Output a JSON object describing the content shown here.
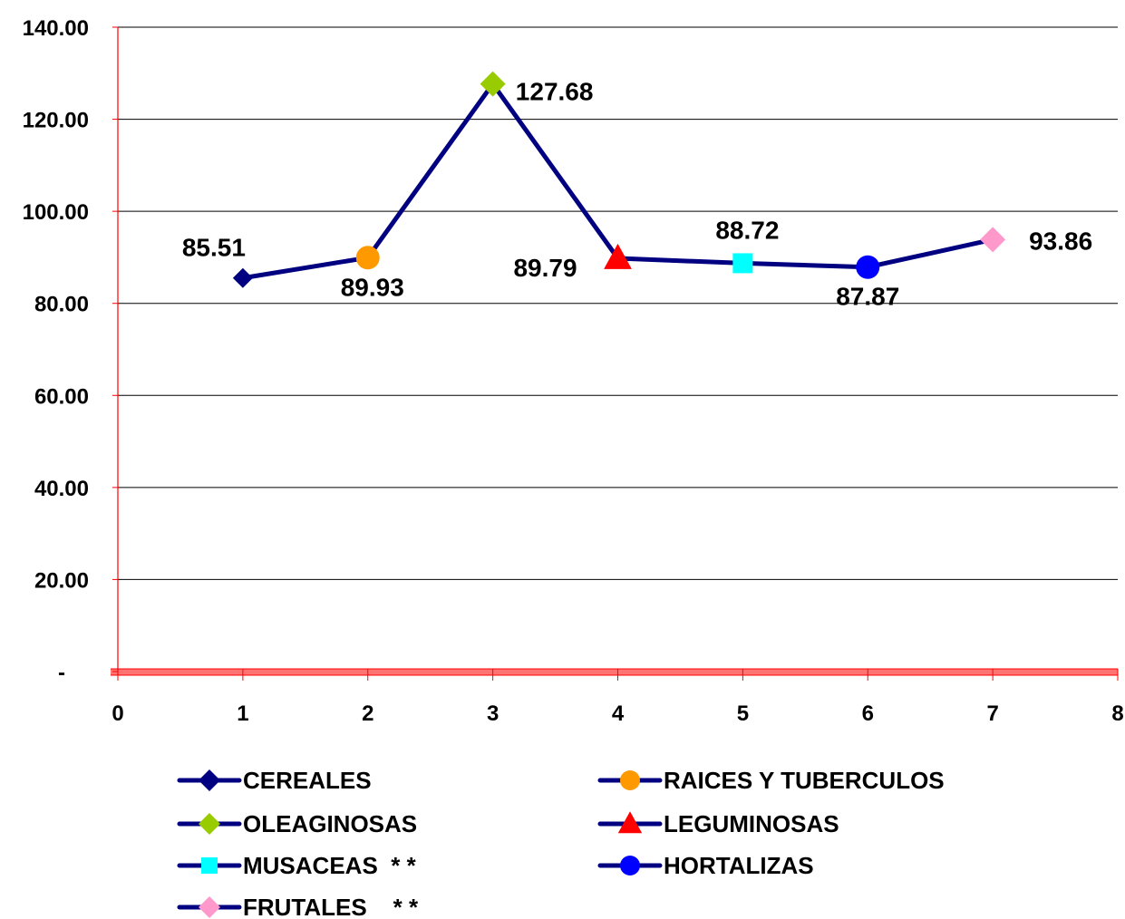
{
  "chart_data": {
    "type": "line",
    "title": "",
    "xlabel": "",
    "ylabel": "",
    "xlim": [
      0,
      8
    ],
    "ylim": [
      0,
      140
    ],
    "x_ticks": [
      "0",
      "1",
      "2",
      "3",
      "4",
      "5",
      "6",
      "7",
      "8"
    ],
    "y_ticks": [
      "-",
      "20.00",
      "40.00",
      "60.00",
      "80.00",
      "100.00",
      "120.00",
      "140.00"
    ],
    "grid": "horizontal",
    "legend_position": "bottom",
    "line_color": "#000080",
    "axis_color": "#ff0000",
    "points": [
      {
        "name": "CEREALES",
        "x": 1,
        "y": 85.51,
        "label": "85.51",
        "marker": "diamond",
        "color": "#000080"
      },
      {
        "name": "RAICES Y TUBERCULOS",
        "x": 2,
        "y": 89.93,
        "label": "89.93",
        "marker": "circle",
        "color": "#ff9900"
      },
      {
        "name": "OLEAGINOSAS",
        "x": 3,
        "y": 127.68,
        "label": "127.68",
        "marker": "diamond",
        "color": "#99cc00"
      },
      {
        "name": "LEGUMINOSAS",
        "x": 4,
        "y": 89.79,
        "label": "89.79",
        "marker": "triangle",
        "color": "#ff0000"
      },
      {
        "name": "MUSACEAS  * *",
        "x": 5,
        "y": 88.72,
        "label": "88.72",
        "marker": "square",
        "color": "#00ffff"
      },
      {
        "name": "HORTALIZAS",
        "x": 6,
        "y": 87.87,
        "label": "87.87",
        "marker": "circle",
        "color": "#0000ff"
      },
      {
        "name": "FRUTALES    * *",
        "x": 7,
        "y": 93.86,
        "label": "93.86",
        "marker": "diamond",
        "color": "#ff99cc"
      }
    ]
  }
}
